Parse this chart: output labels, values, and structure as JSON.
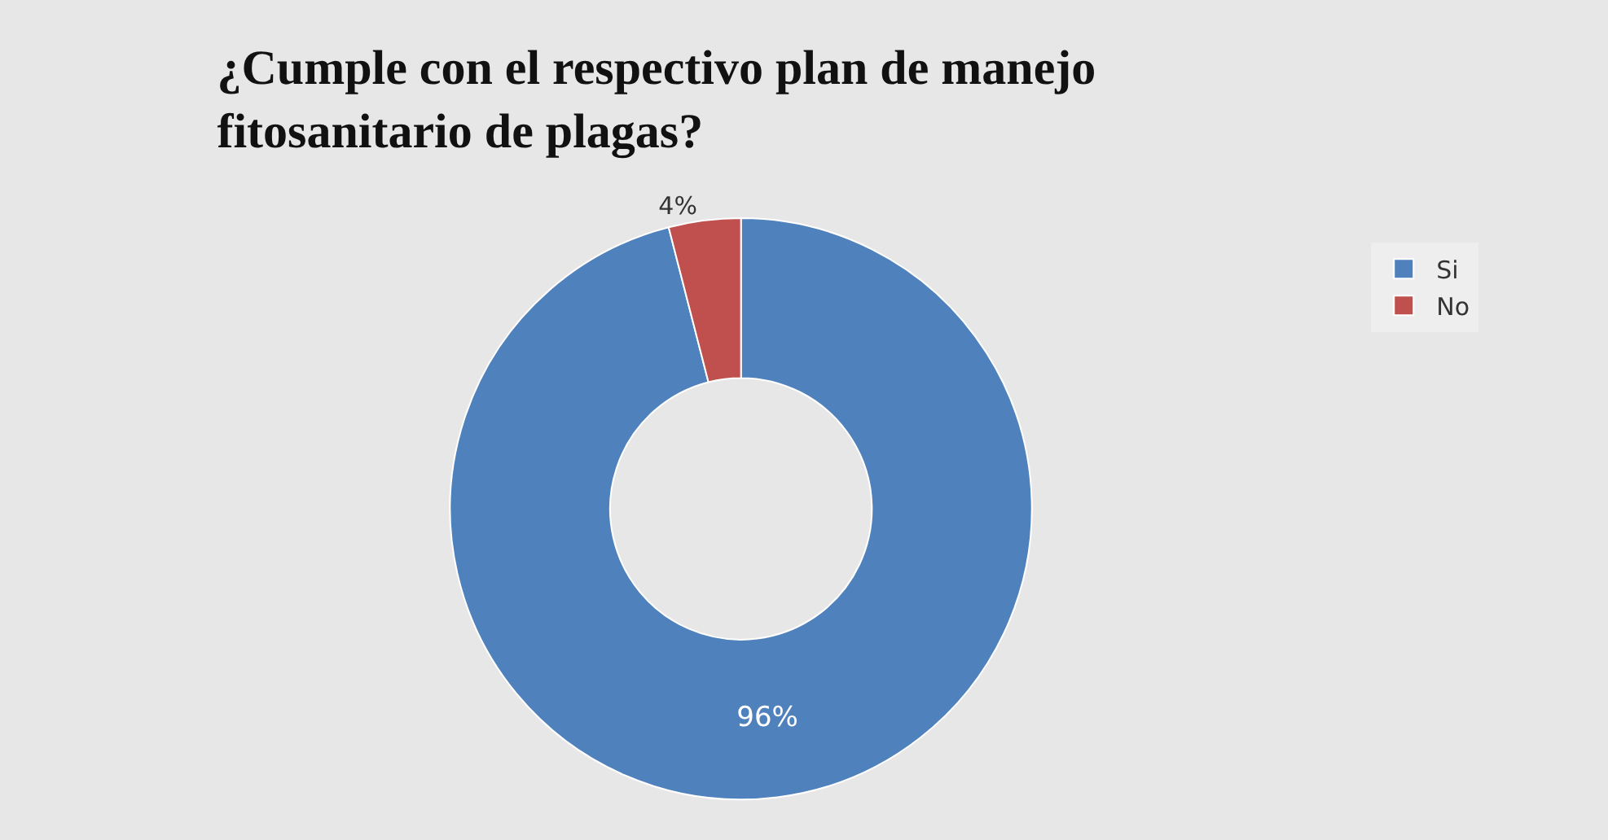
{
  "chart_data": {
    "type": "donut",
    "title": "¿Cumple con el respectivo plan de manejo\nfitosanitario de plagas?",
    "categories": [
      "Si",
      "No"
    ],
    "values": [
      96,
      4
    ],
    "colors": [
      "#4f81bd",
      "#c0504d"
    ],
    "value_labels": [
      "96%",
      "4%"
    ],
    "legend": "top right"
  }
}
